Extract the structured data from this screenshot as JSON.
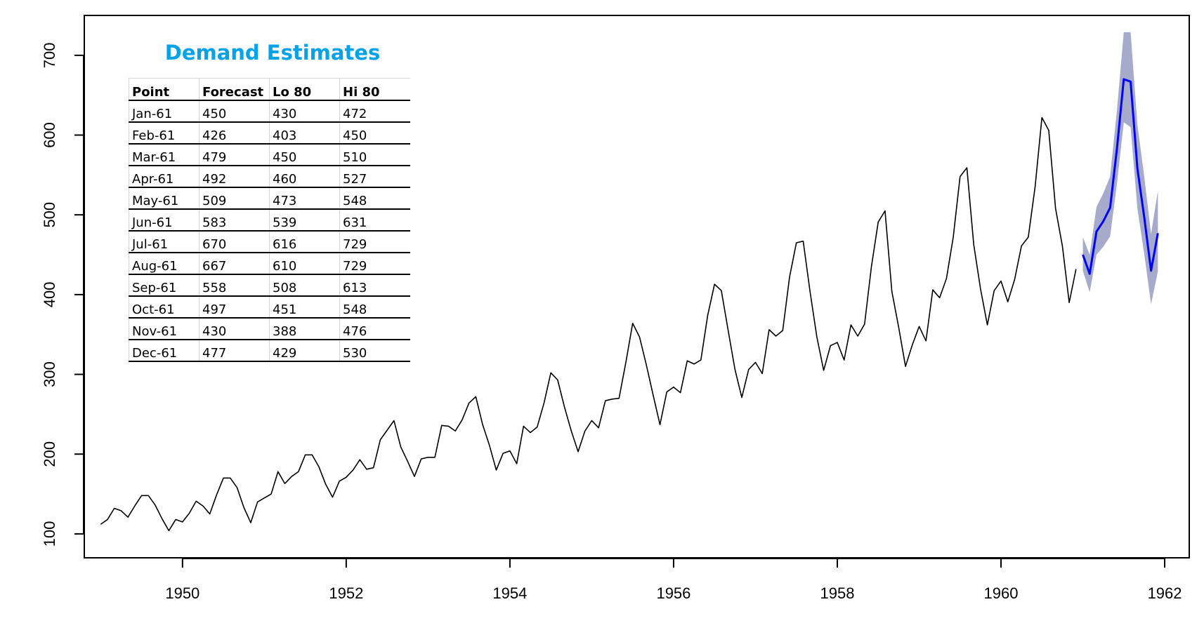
{
  "chart_data": {
    "type": "line",
    "xlim": [
      1948.8,
      1962.3
    ],
    "ylim": [
      70,
      750
    ],
    "x_ticks": [
      1950,
      1952,
      1954,
      1956,
      1958,
      1960,
      1962
    ],
    "y_ticks": [
      100,
      200,
      300,
      400,
      500,
      600,
      700
    ],
    "x_tick_labels": [
      "1950",
      "1952",
      "1954",
      "1956",
      "1958",
      "1960",
      "1962"
    ],
    "y_tick_labels": [
      "100",
      "200",
      "300",
      "400",
      "500",
      "600",
      "700"
    ],
    "grid": false,
    "observed": {
      "start": 1949.0,
      "step": 0.0833333,
      "color": "#000000",
      "values": [
        112,
        118,
        132,
        129,
        121,
        135,
        148,
        148,
        136,
        119,
        104,
        118,
        115,
        126,
        141,
        135,
        125,
        149,
        170,
        170,
        158,
        133,
        114,
        140,
        145,
        150,
        178,
        163,
        172,
        178,
        199,
        199,
        184,
        162,
        146,
        166,
        171,
        180,
        193,
        181,
        183,
        218,
        230,
        242,
        209,
        191,
        172,
        194,
        196,
        196,
        236,
        235,
        229,
        243,
        264,
        272,
        237,
        211,
        180,
        201,
        204,
        188,
        235,
        227,
        234,
        264,
        302,
        293,
        259,
        229,
        203,
        229,
        242,
        233,
        267,
        269,
        270,
        315,
        364,
        347,
        312,
        274,
        237,
        278,
        284,
        277,
        317,
        313,
        318,
        374,
        413,
        405,
        355,
        306,
        271,
        306,
        315,
        301,
        356,
        348,
        355,
        422,
        465,
        467,
        404,
        347,
        305,
        336,
        340,
        318,
        362,
        348,
        363,
        435,
        491,
        505,
        404,
        359,
        310,
        337,
        360,
        342,
        406,
        396,
        420,
        472,
        548,
        559,
        463,
        407,
        362,
        405,
        417,
        391,
        419,
        461,
        472,
        535,
        622,
        606,
        508,
        461,
        390,
        432
      ]
    },
    "forecast": {
      "start": 1961.0,
      "step": 0.0833333,
      "line_color": "#0000ff",
      "band_color": "#a7abcb",
      "values": [
        450,
        426,
        479,
        492,
        509,
        583,
        670,
        667,
        558,
        497,
        430,
        477
      ],
      "lo80": [
        430,
        403,
        450,
        460,
        473,
        539,
        616,
        610,
        508,
        451,
        388,
        429
      ],
      "hi80": [
        472,
        450,
        510,
        527,
        548,
        631,
        729,
        729,
        613,
        548,
        476,
        530
      ]
    }
  },
  "table": {
    "title": "Demand Estimates",
    "headers": [
      "Point",
      "Forecast",
      "Lo 80",
      "Hi 80"
    ],
    "rows": [
      [
        "Jan-61",
        "450",
        "430",
        "472"
      ],
      [
        "Feb-61",
        "426",
        "403",
        "450"
      ],
      [
        "Mar-61",
        "479",
        "450",
        "510"
      ],
      [
        "Apr-61",
        "492",
        "460",
        "527"
      ],
      [
        "May-61",
        "509",
        "473",
        "548"
      ],
      [
        "Jun-61",
        "583",
        "539",
        "631"
      ],
      [
        "Jul-61",
        "670",
        "616",
        "729"
      ],
      [
        "Aug-61",
        "667",
        "610",
        "729"
      ],
      [
        "Sep-61",
        "558",
        "508",
        "613"
      ],
      [
        "Oct-61",
        "497",
        "451",
        "548"
      ],
      [
        "Nov-61",
        "430",
        "388",
        "476"
      ],
      [
        "Dec-61",
        "477",
        "429",
        "530"
      ]
    ]
  }
}
